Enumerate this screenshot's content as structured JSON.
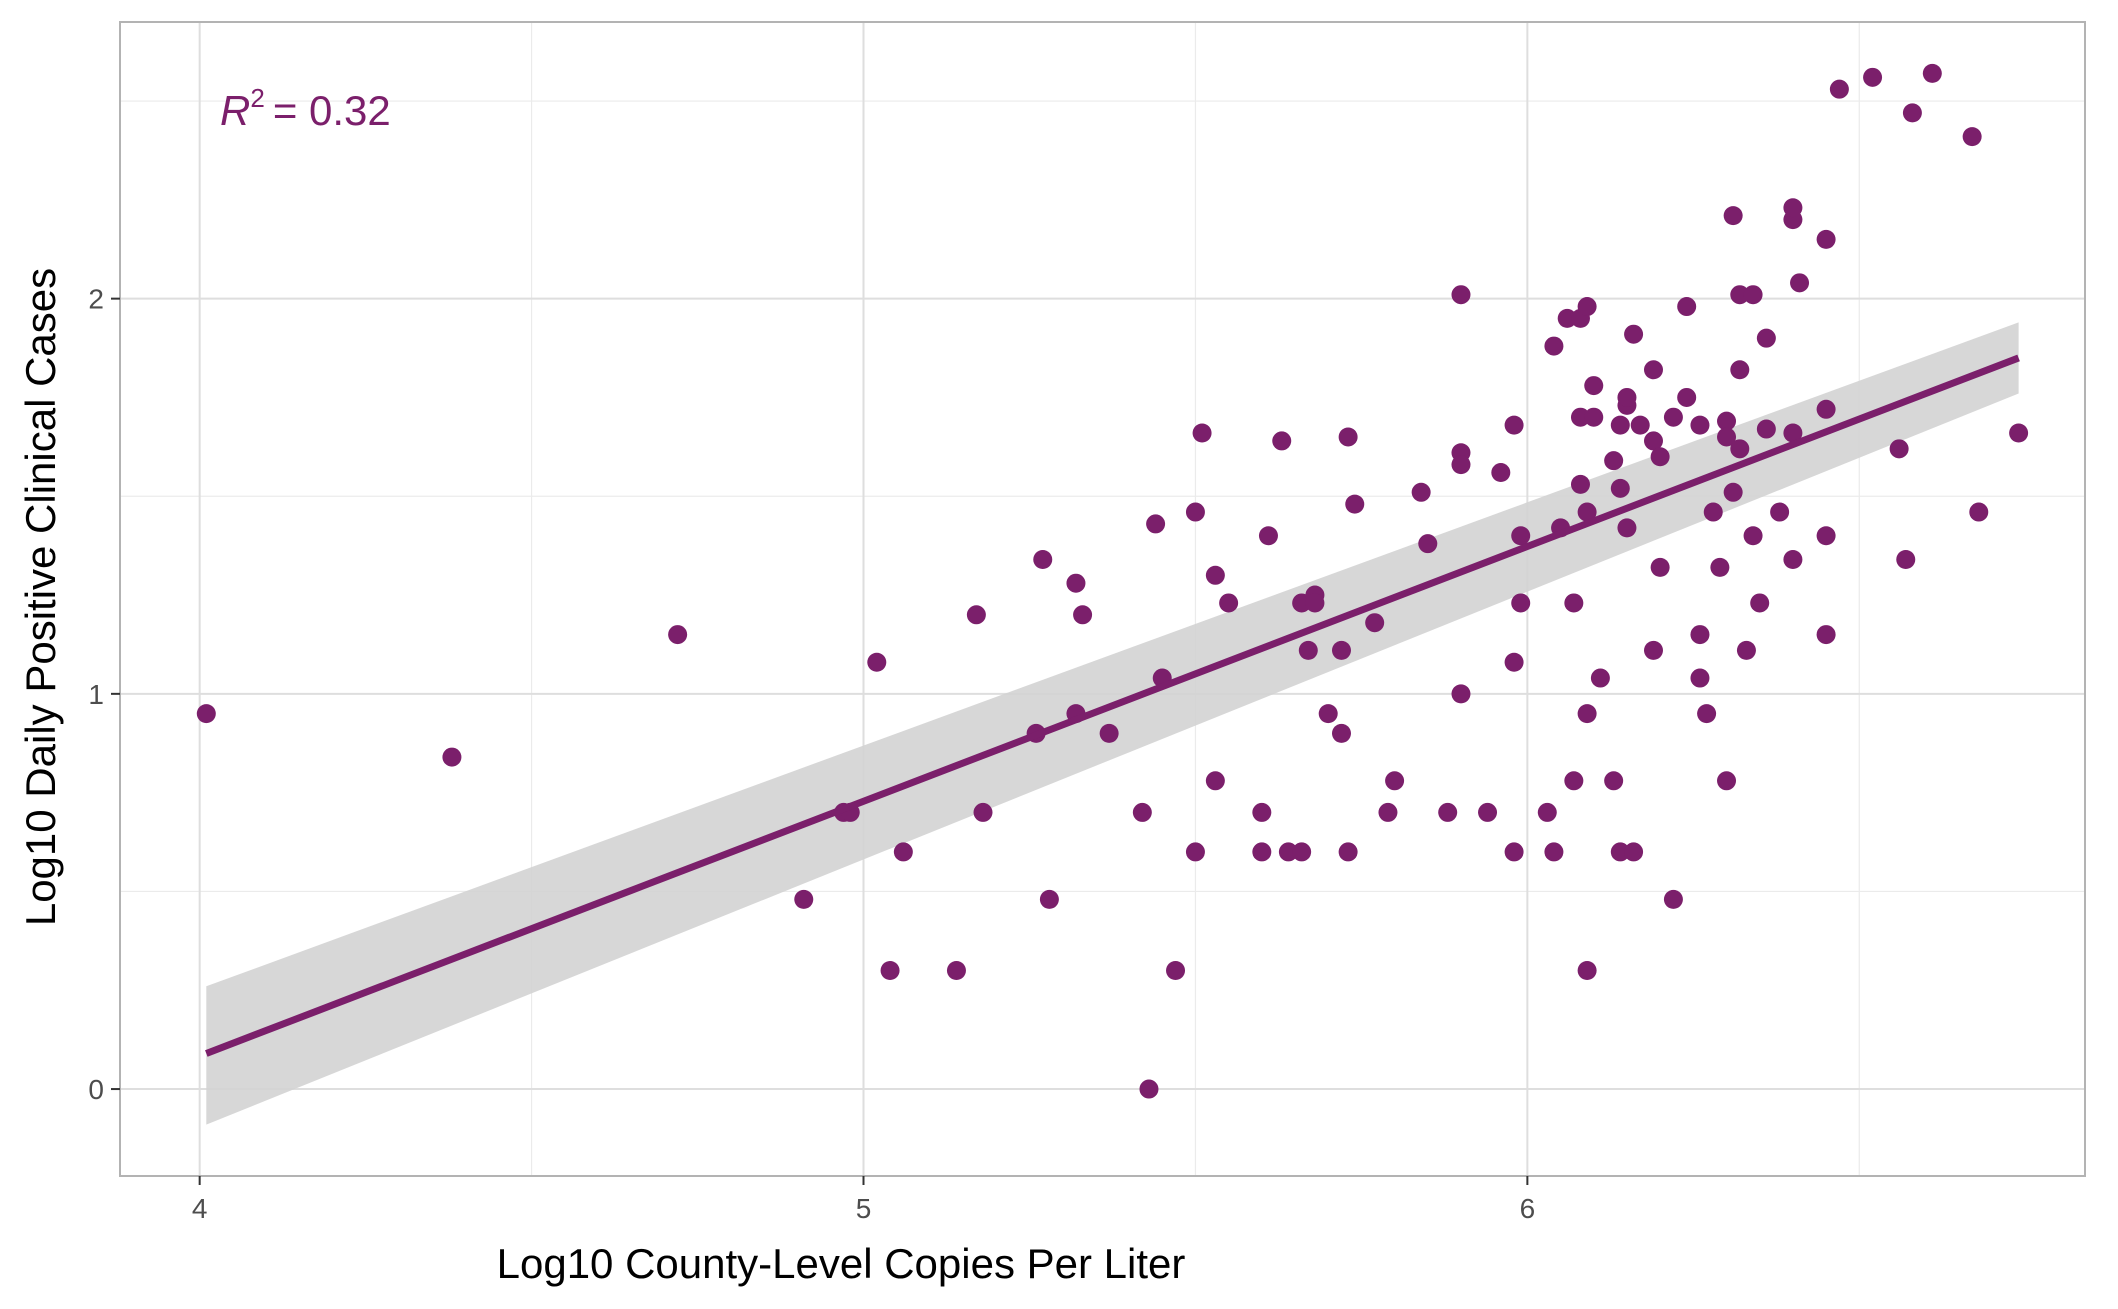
{
  "chart_data": {
    "type": "scatter",
    "title": "",
    "xlabel": "Log10 County-Level Copies Per Liter",
    "ylabel": "Log10 Daily Positive Clinical Cases",
    "xlim": [
      3.88,
      6.84
    ],
    "ylim": [
      -0.22,
      2.7
    ],
    "x_ticks": [
      4,
      5,
      6
    ],
    "x_tick_labels": [
      "4",
      "5",
      "6"
    ],
    "y_ticks": [
      0,
      1,
      2
    ],
    "y_tick_labels": [
      "0",
      "1",
      "2"
    ],
    "x_minor": [
      4.5,
      5.5,
      6.5
    ],
    "y_minor": [
      0.5,
      1.5,
      2.5
    ],
    "grid": true,
    "point_color": "#7b1f6b",
    "line_color": "#7b1f6b",
    "band_color": "#d3d3d3",
    "annotation": {
      "r_symbol": "R",
      "r_exponent": "2",
      "r_value": "= 0.32"
    },
    "fit": {
      "x": [
        4.01,
        6.74
      ],
      "y": [
        0.09,
        1.85
      ]
    },
    "confidence_band": {
      "x": [
        4.01,
        6.74
      ],
      "lower": [
        -0.09,
        1.76
      ],
      "upper": [
        0.26,
        1.94
      ]
    },
    "points": [
      [
        4.01,
        0.95
      ],
      [
        4.38,
        0.84
      ],
      [
        4.72,
        1.15
      ],
      [
        4.91,
        0.48
      ],
      [
        4.97,
        0.7
      ],
      [
        4.98,
        0.7
      ],
      [
        5.02,
        1.08
      ],
      [
        5.04,
        0.3
      ],
      [
        5.06,
        0.6
      ],
      [
        5.14,
        0.3
      ],
      [
        5.17,
        1.2
      ],
      [
        5.18,
        0.7
      ],
      [
        5.26,
        0.9
      ],
      [
        5.27,
        1.34
      ],
      [
        5.28,
        0.48
      ],
      [
        5.32,
        1.28
      ],
      [
        5.32,
        0.95
      ],
      [
        5.33,
        1.2
      ],
      [
        5.37,
        0.9
      ],
      [
        5.42,
        0.7
      ],
      [
        5.43,
        0.0
      ],
      [
        5.44,
        1.43
      ],
      [
        5.45,
        1.04
      ],
      [
        5.47,
        0.3
      ],
      [
        5.5,
        0.6
      ],
      [
        5.5,
        1.46
      ],
      [
        5.51,
        1.66
      ],
      [
        5.53,
        1.3
      ],
      [
        5.53,
        0.78
      ],
      [
        5.55,
        1.23
      ],
      [
        5.6,
        0.7
      ],
      [
        5.6,
        0.6
      ],
      [
        5.61,
        1.4
      ],
      [
        5.63,
        1.64
      ],
      [
        5.64,
        0.6
      ],
      [
        5.66,
        1.23
      ],
      [
        5.66,
        0.6
      ],
      [
        5.67,
        1.11
      ],
      [
        5.68,
        1.25
      ],
      [
        5.68,
        1.23
      ],
      [
        5.7,
        0.95
      ],
      [
        5.72,
        1.11
      ],
      [
        5.72,
        0.9
      ],
      [
        5.73,
        0.6
      ],
      [
        5.73,
        1.65
      ],
      [
        5.74,
        1.48
      ],
      [
        5.77,
        1.18
      ],
      [
        5.79,
        0.7
      ],
      [
        5.8,
        0.78
      ],
      [
        5.84,
        1.51
      ],
      [
        5.85,
        1.38
      ],
      [
        5.88,
        0.7
      ],
      [
        5.9,
        1.0
      ],
      [
        5.9,
        2.01
      ],
      [
        5.9,
        1.61
      ],
      [
        5.9,
        1.58
      ],
      [
        5.94,
        0.7
      ],
      [
        5.96,
        1.56
      ],
      [
        5.98,
        1.68
      ],
      [
        5.98,
        1.08
      ],
      [
        5.98,
        0.6
      ],
      [
        5.99,
        1.4
      ],
      [
        5.99,
        1.23
      ],
      [
        6.03,
        0.7
      ],
      [
        6.04,
        0.6
      ],
      [
        6.04,
        1.88
      ],
      [
        6.05,
        1.42
      ],
      [
        6.06,
        1.95
      ],
      [
        6.07,
        1.23
      ],
      [
        6.07,
        0.78
      ],
      [
        6.08,
        1.7
      ],
      [
        6.08,
        1.95
      ],
      [
        6.08,
        1.53
      ],
      [
        6.09,
        1.46
      ],
      [
        6.09,
        0.95
      ],
      [
        6.09,
        1.98
      ],
      [
        6.09,
        0.3
      ],
      [
        6.1,
        1.7
      ],
      [
        6.1,
        1.78
      ],
      [
        6.11,
        1.04
      ],
      [
        6.13,
        1.59
      ],
      [
        6.13,
        0.78
      ],
      [
        6.14,
        0.6
      ],
      [
        6.14,
        1.52
      ],
      [
        6.14,
        1.68
      ],
      [
        6.15,
        1.42
      ],
      [
        6.15,
        1.73
      ],
      [
        6.15,
        1.75
      ],
      [
        6.16,
        1.91
      ],
      [
        6.16,
        0.6
      ],
      [
        6.17,
        1.68
      ],
      [
        6.19,
        1.82
      ],
      [
        6.19,
        1.11
      ],
      [
        6.19,
        1.64
      ],
      [
        6.2,
        1.32
      ],
      [
        6.2,
        1.6
      ],
      [
        6.22,
        1.7
      ],
      [
        6.22,
        0.48
      ],
      [
        6.24,
        1.75
      ],
      [
        6.24,
        1.98
      ],
      [
        6.26,
        1.15
      ],
      [
        6.26,
        1.68
      ],
      [
        6.26,
        1.04
      ],
      [
        6.27,
        0.95
      ],
      [
        6.28,
        1.46
      ],
      [
        6.29,
        1.32
      ],
      [
        6.3,
        1.69
      ],
      [
        6.3,
        0.78
      ],
      [
        6.3,
        1.65
      ],
      [
        6.31,
        2.21
      ],
      [
        6.31,
        1.51
      ],
      [
        6.32,
        2.01
      ],
      [
        6.32,
        1.82
      ],
      [
        6.32,
        1.62
      ],
      [
        6.33,
        1.11
      ],
      [
        6.34,
        1.4
      ],
      [
        6.34,
        2.01
      ],
      [
        6.35,
        1.23
      ],
      [
        6.36,
        1.67
      ],
      [
        6.36,
        1.9
      ],
      [
        6.38,
        1.46
      ],
      [
        6.4,
        1.34
      ],
      [
        6.4,
        2.2
      ],
      [
        6.4,
        1.66
      ],
      [
        6.4,
        2.23
      ],
      [
        6.41,
        2.04
      ],
      [
        6.45,
        1.72
      ],
      [
        6.45,
        2.15
      ],
      [
        6.45,
        1.4
      ],
      [
        6.45,
        1.15
      ],
      [
        6.47,
        2.53
      ],
      [
        6.52,
        2.56
      ],
      [
        6.56,
        1.62
      ],
      [
        6.57,
        1.34
      ],
      [
        6.58,
        2.47
      ],
      [
        6.61,
        2.57
      ],
      [
        6.67,
        2.41
      ],
      [
        6.68,
        1.46
      ],
      [
        6.74,
        1.66
      ]
    ]
  }
}
